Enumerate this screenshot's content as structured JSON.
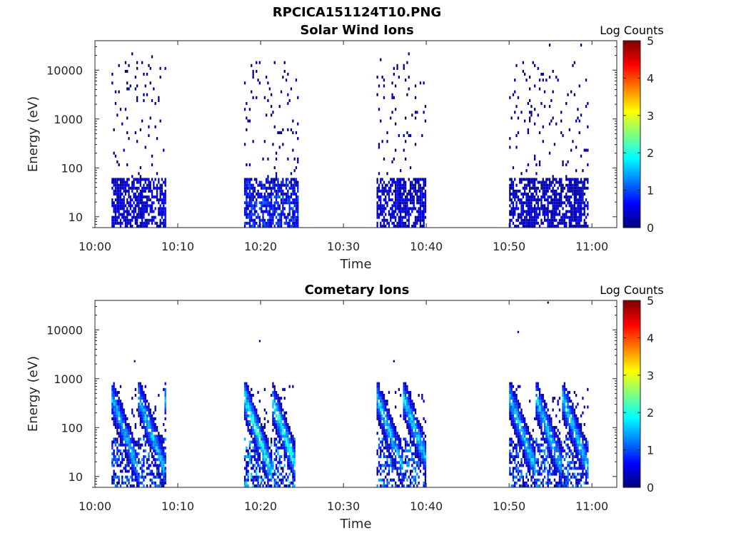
{
  "figure": {
    "title": "RPCICA151124T10.PNG"
  },
  "chart_data": [
    {
      "type": "heatmap",
      "title": "Solar Wind Ions",
      "xlabel": "Time",
      "ylabel": "Energy (eV)",
      "x_ticks": [
        "10:00",
        "10:10",
        "10:20",
        "10:30",
        "10:40",
        "10:50",
        "11:00"
      ],
      "y_ticks": [
        "10",
        "100",
        "1000",
        "10000"
      ],
      "y_scale": "log",
      "ylim_eV": [
        6,
        40000
      ],
      "xlim": [
        "10:00",
        "11:03"
      ],
      "colorbar": {
        "label": "Log Counts",
        "ticks": [
          "0",
          "1",
          "2",
          "3",
          "4",
          "5"
        ],
        "range": [
          0,
          5
        ],
        "colormap": "jet"
      },
      "sweeps": [
        {
          "start": "10:02",
          "end": "10:08:30",
          "low_energy_peak_log_counts": 0.6,
          "sparse_high_energy": true
        },
        {
          "start": "10:18",
          "end": "10:24:30",
          "low_energy_peak_log_counts": 1.0,
          "sparse_high_energy": true
        },
        {
          "start": "10:34",
          "end": "10:40",
          "low_energy_peak_log_counts": 0.6,
          "sparse_high_energy": true
        },
        {
          "start": "10:50",
          "end": "10:59:30",
          "low_energy_peak_log_counts": 0.5,
          "sparse_high_energy": true
        }
      ]
    },
    {
      "type": "heatmap",
      "title": "Cometary Ions",
      "xlabel": "Time",
      "ylabel": "Energy (eV)",
      "x_ticks": [
        "10:00",
        "10:10",
        "10:20",
        "10:30",
        "10:40",
        "10:50",
        "11:00"
      ],
      "y_ticks": [
        "10",
        "100",
        "1000",
        "10000"
      ],
      "y_scale": "log",
      "ylim_eV": [
        6,
        40000
      ],
      "xlim": [
        "10:00",
        "11:03"
      ],
      "colorbar": {
        "label": "Log Counts",
        "ticks": [
          "0",
          "1",
          "2",
          "3",
          "4",
          "5"
        ],
        "range": [
          0,
          5
        ],
        "colormap": "jet"
      },
      "sweeps": [
        {
          "start": "10:02",
          "end": "10:08:30",
          "peak_log_counts": 2.0
        },
        {
          "start": "10:18",
          "end": "10:24",
          "peak_log_counts": 2.5
        },
        {
          "start": "10:34",
          "end": "10:40",
          "peak_log_counts": 2.1
        },
        {
          "start": "10:50",
          "end": "10:59:30",
          "peak_log_counts": 2.1
        }
      ]
    }
  ]
}
